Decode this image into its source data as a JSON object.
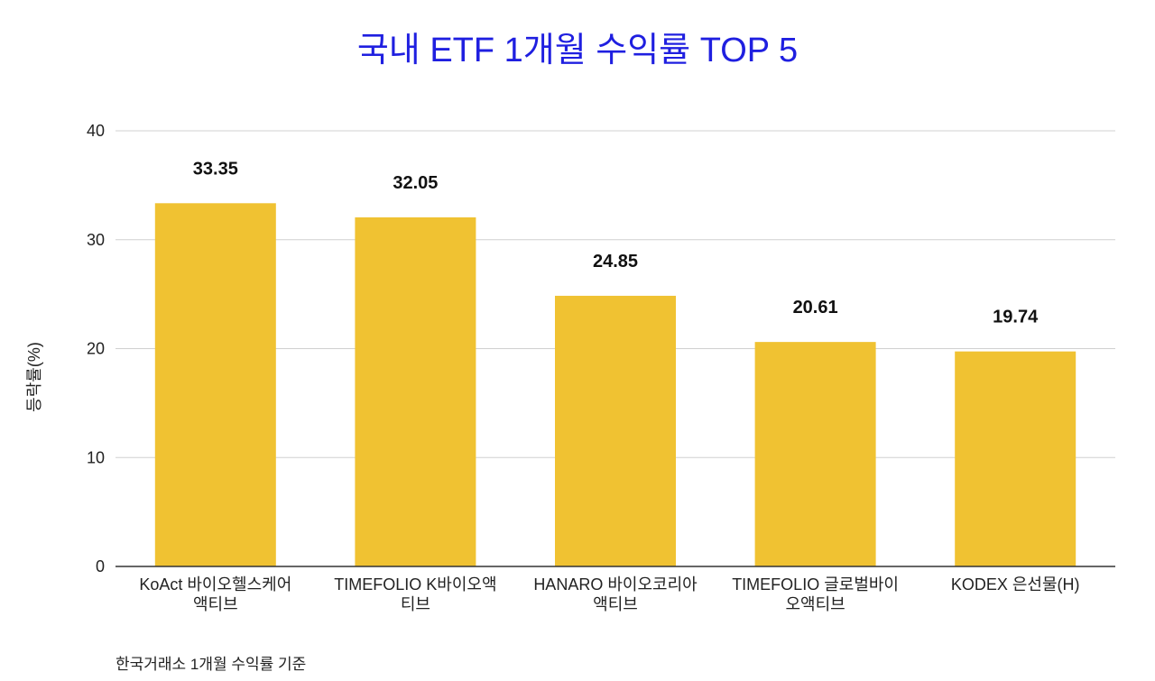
{
  "chart_data": {
    "type": "bar",
    "title": "국내 ETF 1개월 수익률 TOP 5",
    "categories": [
      [
        "KoAct 바이오헬스케어",
        "액티브"
      ],
      [
        "TIMEFOLIO K바이오액",
        "티브"
      ],
      [
        "HANARO 바이오코리아",
        "액티브"
      ],
      [
        "TIMEFOLIO 글로벌바이",
        "오액티브"
      ],
      [
        "KODEX 은선물(H)"
      ]
    ],
    "values": [
      33.35,
      32.05,
      24.85,
      20.61,
      19.74
    ],
    "data_labels": [
      "33.35",
      "32.05",
      "24.85",
      "20.61",
      "19.74"
    ],
    "xlabel": "",
    "ylabel": "등락률(%)",
    "ylim": [
      0,
      40
    ],
    "yticks": [
      0,
      10,
      20,
      30,
      40
    ],
    "grid": true,
    "bar_color": "#f0c232",
    "title_color": "#1f1fe0"
  },
  "footnote": "한국거래소 1개월 수익률 기준"
}
